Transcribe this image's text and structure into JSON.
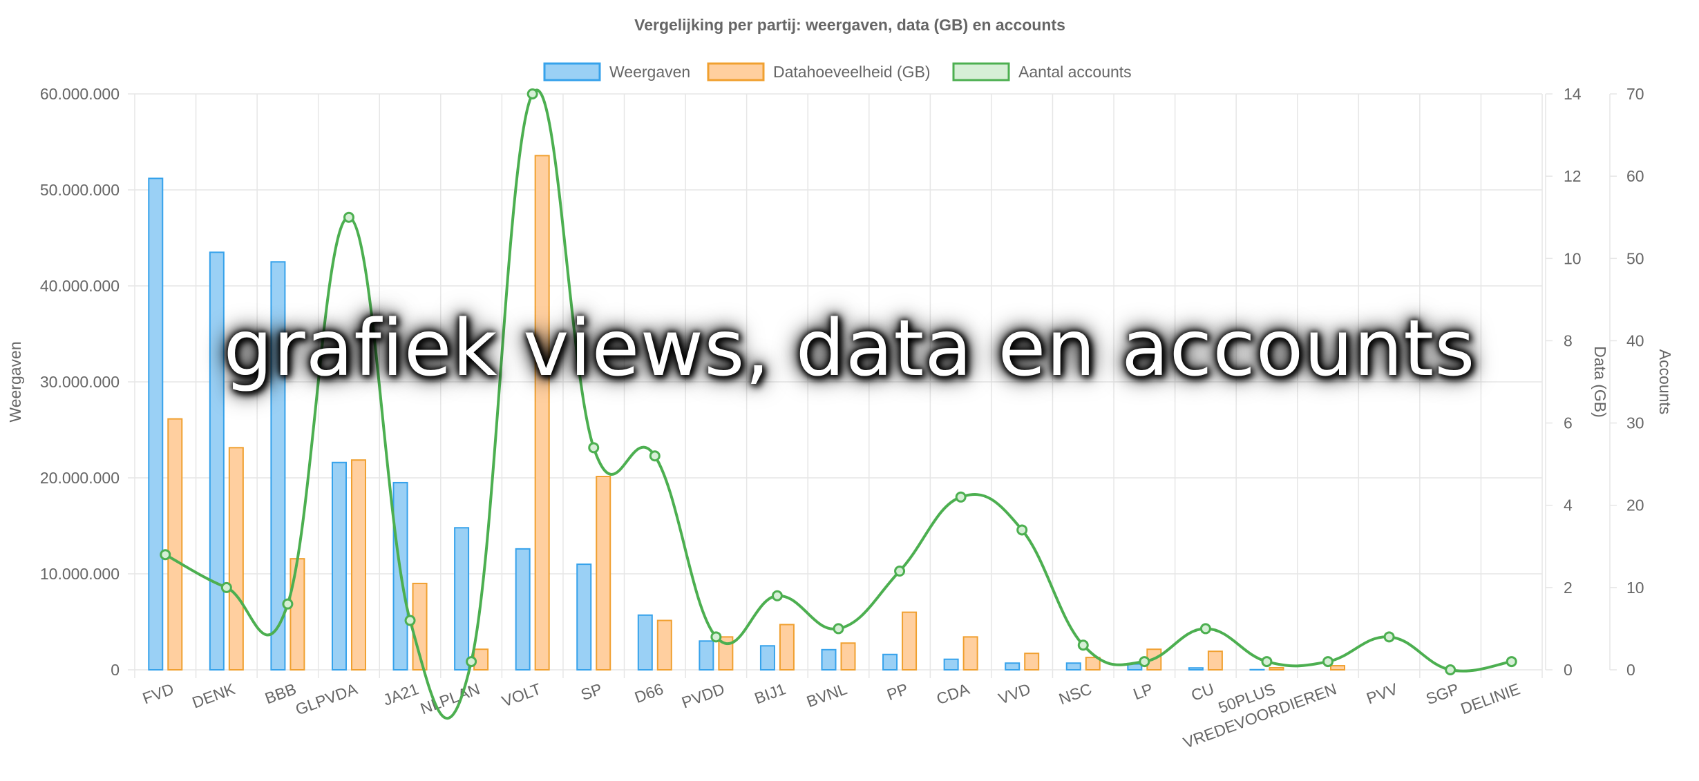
{
  "overlay_caption": "grafiek views, data en accounts",
  "colors": {
    "views_fill": "#9ad0f5",
    "views_stroke": "#36a2eb",
    "data_fill": "#ffcf9f",
    "data_stroke": "#f0a030",
    "accounts_line": "#4caf50",
    "accounts_fill": "#d6efd6",
    "grid": "#e6e6e6",
    "axis_text": "#666666"
  },
  "chart_data": {
    "type": "bar",
    "title": "Vergelijking per partij: weergaven, data (GB) en accounts",
    "legend_position": "top",
    "grid": true,
    "categories": [
      "FVD",
      "DENK",
      "BBB",
      "GLPVDA",
      "JA21",
      "NLPLAN",
      "VOLT",
      "SP",
      "D66",
      "PVDD",
      "BIJ1",
      "BVNL",
      "PP",
      "CDA",
      "VVD",
      "NSC",
      "LP",
      "CU",
      "50PLUS",
      "VREDEVOORDIEREN",
      "PVV",
      "SGP",
      "DELINIE"
    ],
    "axes": {
      "y_left": {
        "label": "Weergaven",
        "ylim": [
          0,
          60000000
        ],
        "ticks": [
          "0",
          "10.000.000",
          "20.000.000",
          "30.000.000",
          "40.000.000",
          "50.000.000",
          "60.000.000"
        ]
      },
      "y_right_data": {
        "label": "Data (GB)",
        "ylim": [
          0,
          14
        ],
        "ticks": [
          "0",
          "2",
          "4",
          "6",
          "8",
          "10",
          "12",
          "14"
        ]
      },
      "y_right_accounts": {
        "label": "Accounts",
        "ylim": [
          0,
          70
        ],
        "ticks": [
          "0",
          "10",
          "20",
          "30",
          "40",
          "50",
          "60",
          "70"
        ]
      }
    },
    "series": [
      {
        "name": "Weergaven",
        "type": "bar",
        "axis": "y_left",
        "values": [
          51200000,
          43500000,
          42500000,
          21600000,
          19500000,
          14800000,
          12600000,
          11000000,
          5700000,
          3000000,
          2500000,
          2100000,
          1600000,
          1100000,
          700000,
          700000,
          600000,
          200000,
          20000,
          0,
          0,
          0,
          0
        ]
      },
      {
        "name": "Datahoeveelheid (GB)",
        "type": "bar",
        "axis": "y_right_data",
        "values": [
          6.1,
          5.4,
          2.7,
          5.1,
          2.1,
          0.5,
          12.5,
          4.7,
          1.2,
          0.8,
          1.1,
          0.65,
          1.4,
          0.8,
          0.4,
          0.3,
          0.5,
          0.45,
          0.05,
          0.1,
          0,
          0,
          0
        ]
      },
      {
        "name": "Aantal accounts",
        "type": "line",
        "axis": "y_right_accounts",
        "values": [
          14,
          10,
          8,
          55,
          6,
          1,
          70,
          27,
          26,
          4,
          9,
          5,
          12,
          21,
          17,
          3,
          1,
          5,
          1,
          1,
          4,
          0,
          1
        ]
      }
    ]
  }
}
